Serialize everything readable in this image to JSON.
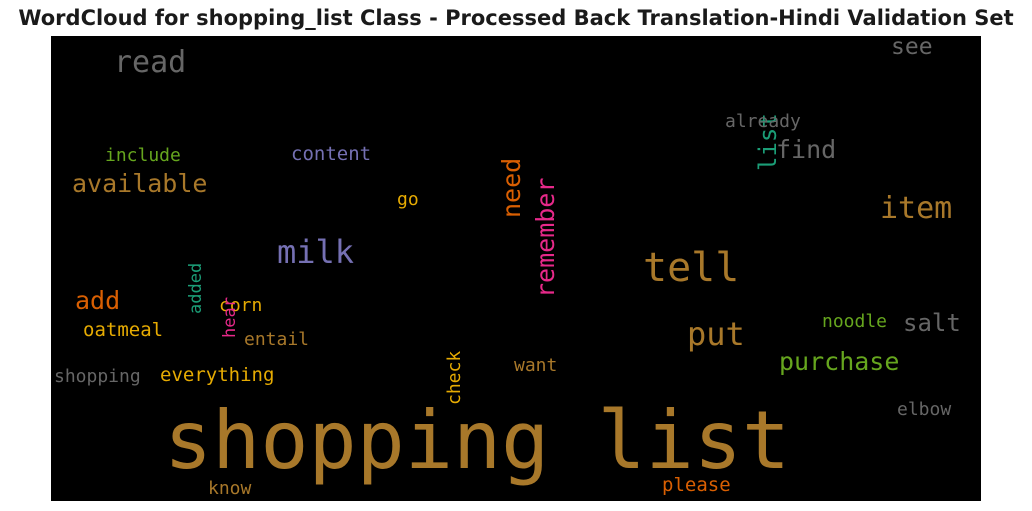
{
  "title": "WordCloud for shopping_list Class - Processed Back Translation-Hindi Validation Set",
  "chart_data": {
    "type": "wordcloud",
    "background": "#000000",
    "words": [
      {
        "text": "shopping list",
        "color": "#a8782a"
      },
      {
        "text": "tell",
        "color": "#a8782a"
      },
      {
        "text": "milk",
        "color": "#7570b3"
      },
      {
        "text": "item",
        "color": "#a8782a"
      },
      {
        "text": "put",
        "color": "#a8782a"
      },
      {
        "text": "remember",
        "color": "#e7298a"
      },
      {
        "text": "read",
        "color": "#666666"
      },
      {
        "text": "list",
        "color": "#1b9e77"
      },
      {
        "text": "purchase",
        "color": "#66a61e"
      },
      {
        "text": "available",
        "color": "#a8782a"
      },
      {
        "text": "need",
        "color": "#d95f02"
      },
      {
        "text": "find",
        "color": "#666666"
      },
      {
        "text": "add",
        "color": "#d95f02"
      },
      {
        "text": "salt",
        "color": "#666666"
      },
      {
        "text": "see",
        "color": "#666666"
      },
      {
        "text": "check",
        "color": "#e6ab02"
      },
      {
        "text": "content",
        "color": "#7570b3"
      },
      {
        "text": "include",
        "color": "#66a61e"
      },
      {
        "text": "already",
        "color": "#666666"
      },
      {
        "text": "everything",
        "color": "#e6ab02"
      },
      {
        "text": "shopping",
        "color": "#666666"
      },
      {
        "text": "oatmeal",
        "color": "#e6ab02"
      },
      {
        "text": "noodle",
        "color": "#66a61e"
      },
      {
        "text": "corn",
        "color": "#e6ab02"
      },
      {
        "text": "entail",
        "color": "#a8782a"
      },
      {
        "text": "added",
        "color": "#1b9e77"
      },
      {
        "text": "hear",
        "color": "#e7298a"
      },
      {
        "text": "elbow",
        "color": "#666666"
      },
      {
        "text": "please",
        "color": "#d95f02"
      },
      {
        "text": "want",
        "color": "#a8782a"
      },
      {
        "text": "know",
        "color": "#a8782a"
      },
      {
        "text": "go",
        "color": "#e6ab02"
      }
    ]
  }
}
